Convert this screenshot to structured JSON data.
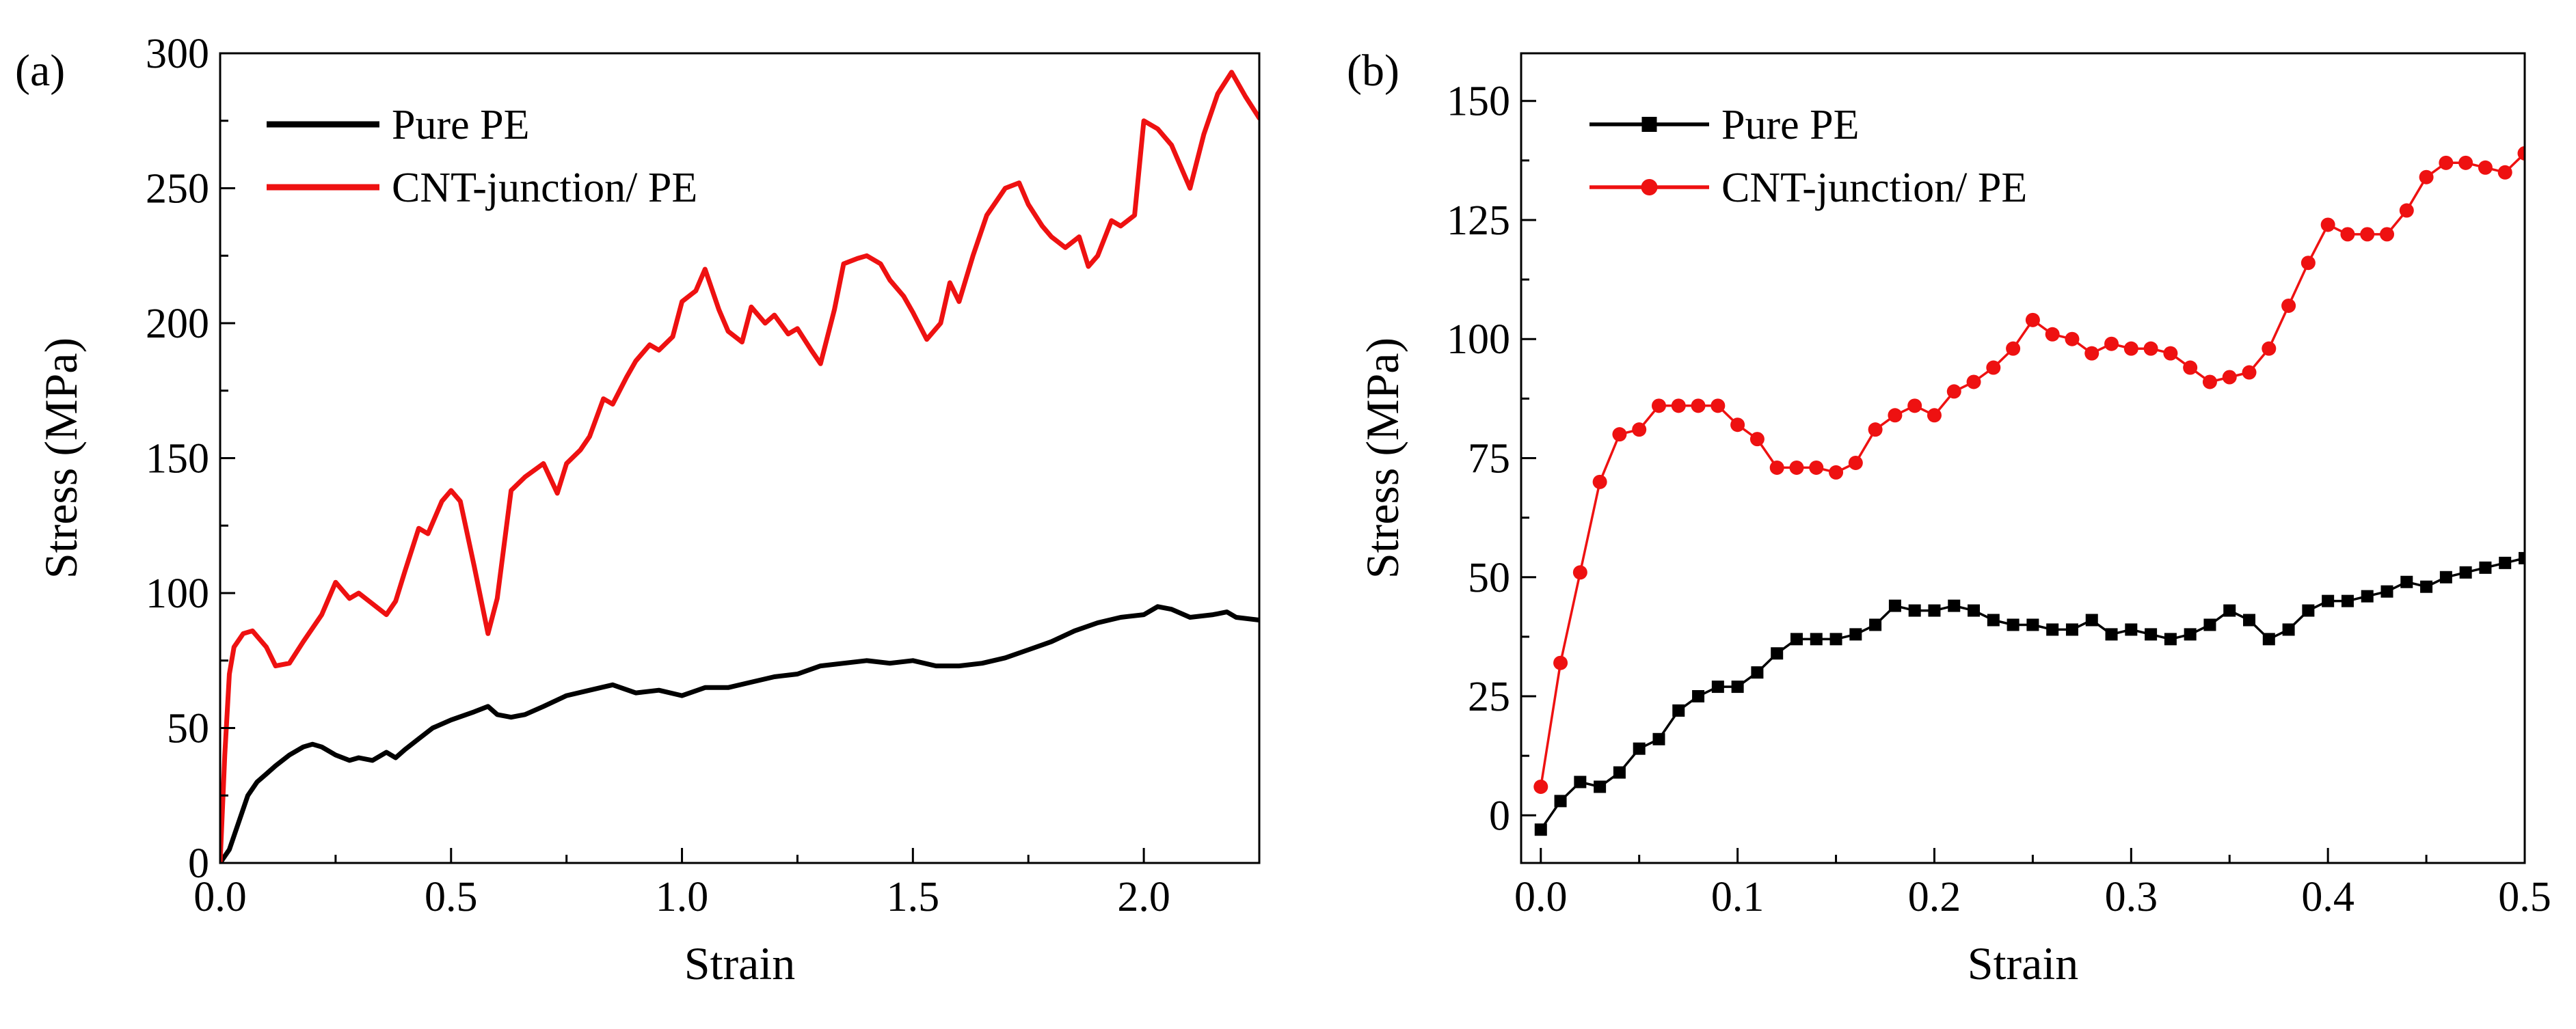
{
  "colors": {
    "pure": "#000000",
    "cnt": "#ee1111",
    "axis": "#000000"
  },
  "chart_data": [
    {
      "panel_label": "(a)",
      "type": "line",
      "xlabel": "Strain",
      "ylabel": "Stress (MPa)",
      "xlim": [
        0,
        2.25
      ],
      "ylim": [
        0,
        300
      ],
      "xticks": [
        0.0,
        0.5,
        1.0,
        1.5,
        2.0
      ],
      "xtick_labels": [
        "0.0",
        "0.5",
        "1.0",
        "1.5",
        "2.0"
      ],
      "yticks": [
        0,
        50,
        100,
        150,
        200,
        250,
        300
      ],
      "ytick_labels": [
        "0",
        "50",
        "100",
        "150",
        "200",
        "250",
        "300"
      ],
      "legend_position": "top-left",
      "series": [
        {
          "name": "Pure PE",
          "color": "#000000",
          "marker": "none",
          "x": [
            0,
            0.02,
            0.04,
            0.06,
            0.08,
            0.1,
            0.12,
            0.15,
            0.18,
            0.2,
            0.22,
            0.25,
            0.28,
            0.3,
            0.33,
            0.36,
            0.38,
            0.4,
            0.43,
            0.46,
            0.5,
            0.55,
            0.58,
            0.6,
            0.63,
            0.66,
            0.7,
            0.75,
            0.8,
            0.85,
            0.9,
            0.95,
            1.0,
            1.05,
            1.1,
            1.15,
            1.2,
            1.25,
            1.3,
            1.35,
            1.4,
            1.45,
            1.5,
            1.55,
            1.6,
            1.65,
            1.7,
            1.75,
            1.8,
            1.85,
            1.9,
            1.95,
            2.0,
            2.03,
            2.06,
            2.1,
            2.15,
            2.18,
            2.2,
            2.25
          ],
          "values": [
            0,
            5,
            15,
            25,
            30,
            33,
            36,
            40,
            43,
            44,
            43,
            40,
            38,
            39,
            38,
            41,
            39,
            42,
            46,
            50,
            53,
            56,
            58,
            55,
            54,
            55,
            58,
            62,
            64,
            66,
            63,
            64,
            62,
            65,
            65,
            67,
            69,
            70,
            73,
            74,
            75,
            74,
            75,
            73,
            73,
            74,
            76,
            79,
            82,
            86,
            89,
            91,
            92,
            95,
            94,
            91,
            92,
            93,
            91,
            90
          ]
        },
        {
          "name": "CNT-junction/ PE",
          "color": "#ee1111",
          "marker": "none",
          "x": [
            0,
            0.01,
            0.02,
            0.03,
            0.05,
            0.07,
            0.1,
            0.12,
            0.15,
            0.18,
            0.2,
            0.22,
            0.25,
            0.28,
            0.3,
            0.33,
            0.36,
            0.38,
            0.4,
            0.43,
            0.45,
            0.48,
            0.5,
            0.52,
            0.55,
            0.58,
            0.6,
            0.63,
            0.66,
            0.7,
            0.73,
            0.75,
            0.78,
            0.8,
            0.83,
            0.85,
            0.88,
            0.9,
            0.93,
            0.95,
            0.98,
            1.0,
            1.03,
            1.05,
            1.08,
            1.1,
            1.13,
            1.15,
            1.18,
            1.2,
            1.23,
            1.25,
            1.28,
            1.3,
            1.33,
            1.35,
            1.38,
            1.4,
            1.43,
            1.45,
            1.48,
            1.5,
            1.53,
            1.56,
            1.58,
            1.6,
            1.63,
            1.66,
            1.7,
            1.73,
            1.75,
            1.78,
            1.8,
            1.83,
            1.86,
            1.88,
            1.9,
            1.93,
            1.95,
            1.98,
            2.0,
            2.03,
            2.06,
            2.1,
            2.13,
            2.16,
            2.19,
            2.22,
            2.25
          ],
          "values": [
            0,
            40,
            70,
            80,
            85,
            86,
            80,
            73,
            74,
            82,
            87,
            92,
            104,
            98,
            100,
            96,
            92,
            97,
            108,
            124,
            122,
            134,
            138,
            134,
            110,
            85,
            98,
            138,
            143,
            148,
            137,
            148,
            153,
            158,
            172,
            170,
            180,
            186,
            192,
            190,
            195,
            208,
            212,
            220,
            205,
            197,
            193,
            206,
            200,
            203,
            196,
            198,
            190,
            185,
            205,
            222,
            224,
            225,
            222,
            216,
            210,
            204,
            194,
            200,
            215,
            208,
            225,
            240,
            250,
            252,
            244,
            236,
            232,
            228,
            232,
            221,
            225,
            238,
            236,
            240,
            275,
            272,
            266,
            250,
            270,
            285,
            293,
            284,
            276
          ]
        }
      ]
    },
    {
      "panel_label": "(b)",
      "type": "line",
      "xlabel": "Strain",
      "ylabel": "Stress (MPa)",
      "xlim": [
        -0.01,
        0.5
      ],
      "ylim": [
        -10,
        160
      ],
      "xticks": [
        0.0,
        0.1,
        0.2,
        0.3,
        0.4,
        0.5
      ],
      "xtick_labels": [
        "0.0",
        "0.1",
        "0.2",
        "0.3",
        "0.4",
        "0.5"
      ],
      "yticks": [
        0,
        25,
        50,
        75,
        100,
        125,
        150
      ],
      "ytick_labels": [
        "0",
        "25",
        "50",
        "75",
        "100",
        "125",
        "150"
      ],
      "legend_position": "top-left",
      "series": [
        {
          "name": "Pure PE",
          "color": "#000000",
          "marker": "square",
          "x": [
            0,
            0.01,
            0.02,
            0.03,
            0.04,
            0.05,
            0.06,
            0.07,
            0.08,
            0.09,
            0.1,
            0.11,
            0.12,
            0.13,
            0.14,
            0.15,
            0.16,
            0.17,
            0.18,
            0.19,
            0.2,
            0.21,
            0.22,
            0.23,
            0.24,
            0.25,
            0.26,
            0.27,
            0.28,
            0.29,
            0.3,
            0.31,
            0.32,
            0.33,
            0.34,
            0.35,
            0.36,
            0.37,
            0.38,
            0.39,
            0.4,
            0.41,
            0.42,
            0.43,
            0.44,
            0.45,
            0.46,
            0.47,
            0.48,
            0.49,
            0.5
          ],
          "values": [
            -3,
            3,
            7,
            6,
            9,
            14,
            16,
            22,
            25,
            27,
            27,
            30,
            34,
            37,
            37,
            37,
            38,
            40,
            44,
            43,
            43,
            44,
            43,
            41,
            40,
            40,
            39,
            39,
            41,
            38,
            39,
            38,
            37,
            38,
            40,
            43,
            41,
            37,
            39,
            43,
            45,
            45,
            46,
            47,
            49,
            48,
            50,
            51,
            52,
            53,
            54
          ]
        },
        {
          "name": "CNT-junction/ PE",
          "color": "#ee1111",
          "marker": "circle",
          "x": [
            0,
            0.01,
            0.02,
            0.03,
            0.04,
            0.05,
            0.06,
            0.07,
            0.08,
            0.09,
            0.1,
            0.11,
            0.12,
            0.13,
            0.14,
            0.15,
            0.16,
            0.17,
            0.18,
            0.19,
            0.2,
            0.21,
            0.22,
            0.23,
            0.24,
            0.25,
            0.26,
            0.27,
            0.28,
            0.29,
            0.3,
            0.31,
            0.32,
            0.33,
            0.34,
            0.35,
            0.36,
            0.37,
            0.38,
            0.39,
            0.4,
            0.41,
            0.42,
            0.43,
            0.44,
            0.45,
            0.46,
            0.47,
            0.48,
            0.49,
            0.5
          ],
          "values": [
            6,
            32,
            51,
            70,
            80,
            81,
            86,
            86,
            86,
            86,
            82,
            79,
            73,
            73,
            73,
            72,
            74,
            81,
            84,
            86,
            84,
            89,
            91,
            94,
            98,
            104,
            101,
            100,
            97,
            99,
            98,
            98,
            97,
            94,
            91,
            92,
            93,
            98,
            107,
            116,
            124,
            122,
            122,
            122,
            127,
            134,
            137,
            137,
            136,
            135,
            139
          ]
        }
      ]
    }
  ]
}
